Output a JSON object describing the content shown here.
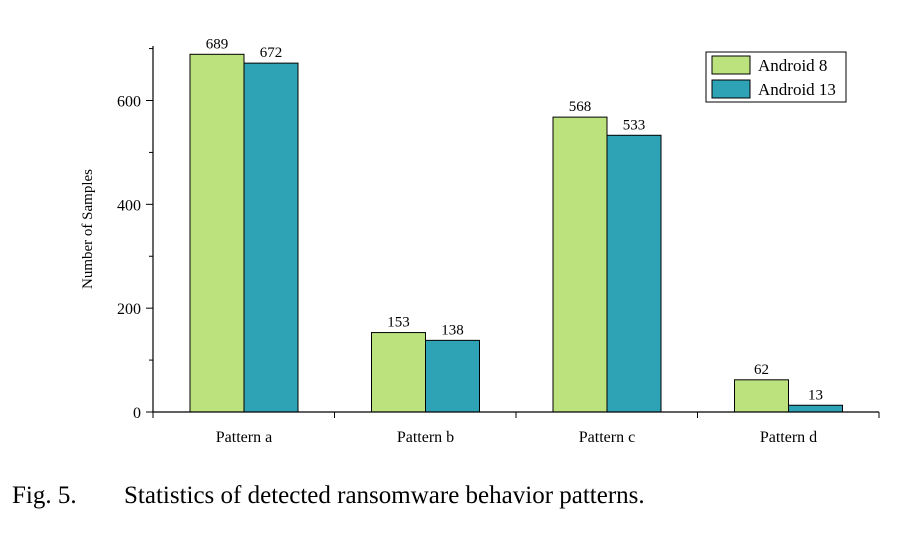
{
  "chart_data": {
    "type": "bar",
    "categories": [
      "Pattern a",
      "Pattern b",
      "Pattern c",
      "Pattern d"
    ],
    "series": [
      {
        "name": "Android 8",
        "values": [
          689,
          153,
          568,
          62
        ],
        "color": "#bce27e"
      },
      {
        "name": "Android 13",
        "values": [
          672,
          138,
          533,
          13
        ],
        "color": "#2ea3b5"
      }
    ],
    "ylabel": "Number of Samples",
    "xlabel": "",
    "ylim": [
      0,
      700
    ],
    "yticks": [
      0,
      200,
      400,
      600
    ],
    "legend_position": "top-right",
    "grid": false
  },
  "caption": {
    "label": "Fig. 5.",
    "text": "Statistics of detected ransomware behavior patterns."
  }
}
